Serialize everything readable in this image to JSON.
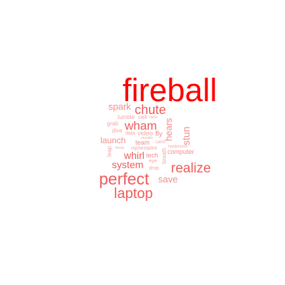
{
  "colors": {
    "background": "#ffffff",
    "strong": "#ff0000",
    "medium": "#f05a5a",
    "light": "#f48c8c",
    "faint": "#f6a6a6"
  },
  "cloud": {
    "words": {
      "fireball": "fireball",
      "chute": "chute",
      "spark": "spark",
      "tumble": "tumble",
      "cell": "cell",
      "race": "race",
      "grab": "grab",
      "wham": "wham",
      "hears": "hears",
      "dive": "dive",
      "data": "data",
      "video": "video",
      "fly": "fly",
      "stun": "stun",
      "launch": "launch",
      "team": "team",
      "monitor": "monitor",
      "catch": "catch",
      "leap": "leap",
      "feeds": "feeds",
      "nip": "nip",
      "bestpilot": "bestpilot",
      "headphones": "headphones",
      "breath": "breath",
      "computer": "computer",
      "whirl": "whirl",
      "tech": "tech",
      "eye": "eye",
      "system": "system",
      "drop": "drop",
      "realize": "realize",
      "perfect": "perfect",
      "save": "save",
      "laptop": "laptop"
    }
  }
}
